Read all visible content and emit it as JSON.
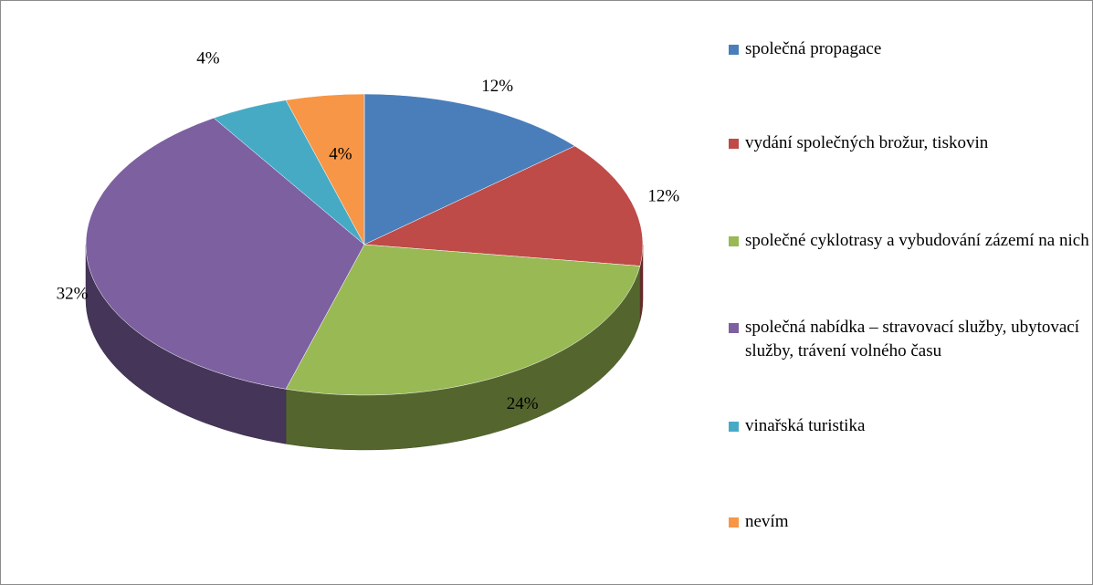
{
  "chart_data": {
    "type": "pie",
    "categories": [
      "společná propagace",
      "vydání společných brožur, tiskovin",
      "společné cyklotrasy a vybudování zázemí na nich",
      "společná nabídka – stravovací služby, ubytovací služby, trávení volného času",
      "vinařská turistika",
      "nevím"
    ],
    "values": [
      12,
      12,
      24,
      32,
      4,
      4
    ],
    "colors": [
      "#4a7ebb",
      "#be4b48",
      "#98b954",
      "#7d60a0",
      "#46aac5",
      "#f79646"
    ],
    "legend": "right"
  }
}
